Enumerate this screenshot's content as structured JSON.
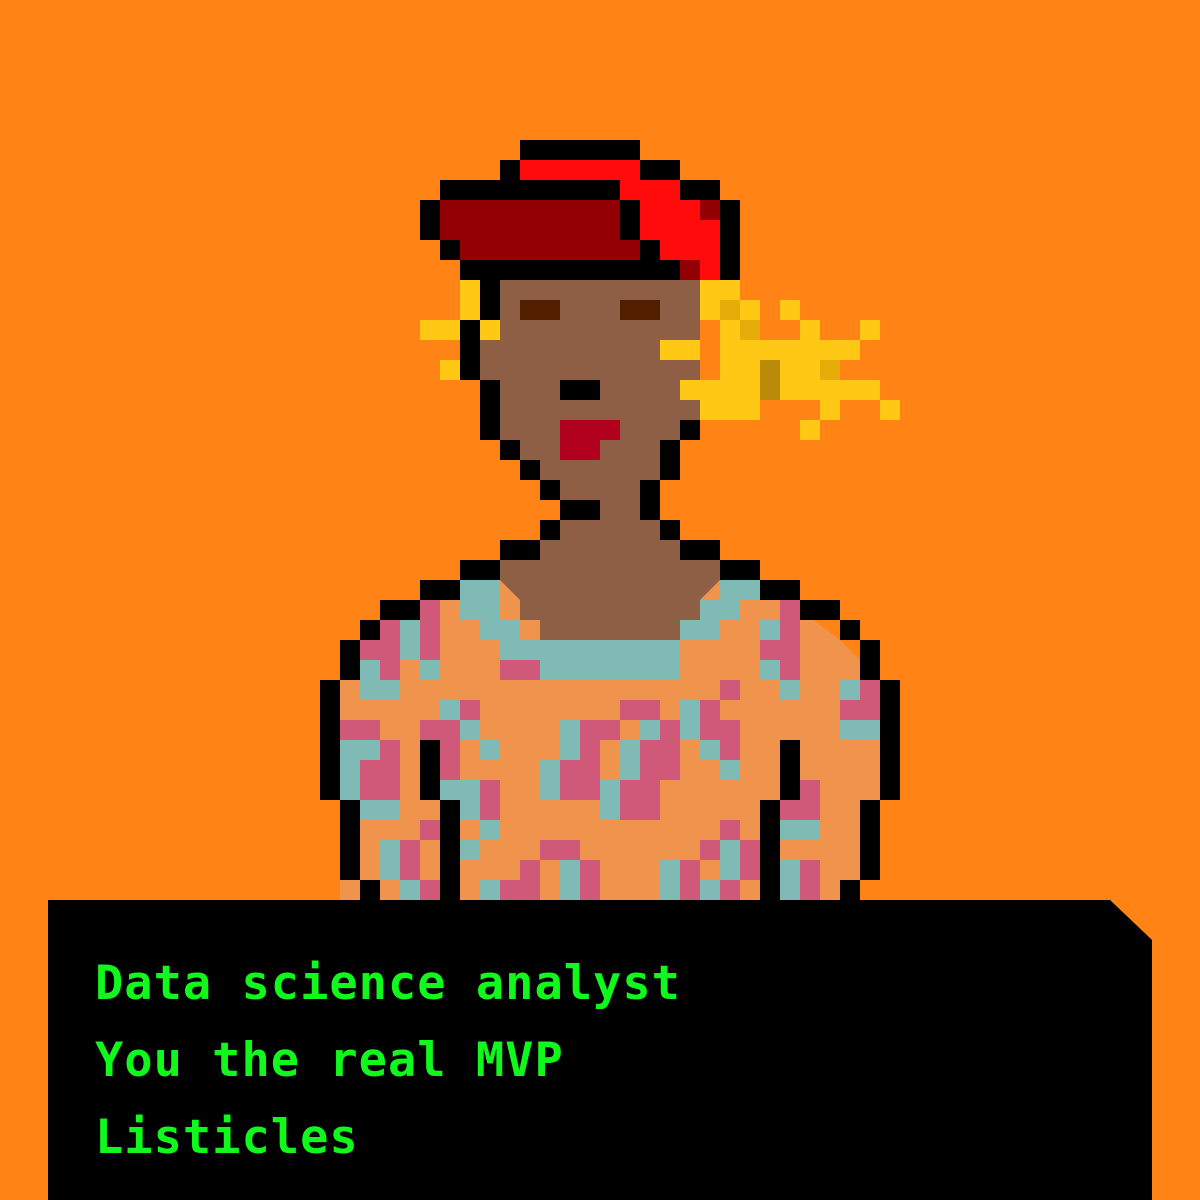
{
  "colors": {
    "background": "#FF8315",
    "outline": "#000000",
    "skin": "#8E5F44",
    "eyes": "#521E00",
    "lips": "#B2001F",
    "hat": "#930003",
    "hat_highlight": "#FF0B0B",
    "hair": "#FFC814",
    "hair_shade": "#E6AC08",
    "hair_dark": "#B98A08",
    "shirt": "#F0934C",
    "shirt_teal": "#7FBAB5",
    "shirt_pink": "#D05879",
    "caption_bg": "#000000",
    "caption_text": "#10F81C"
  },
  "caption": {
    "lines": [
      "Data science analyst",
      "You the real MVP",
      "Listicles"
    ]
  }
}
